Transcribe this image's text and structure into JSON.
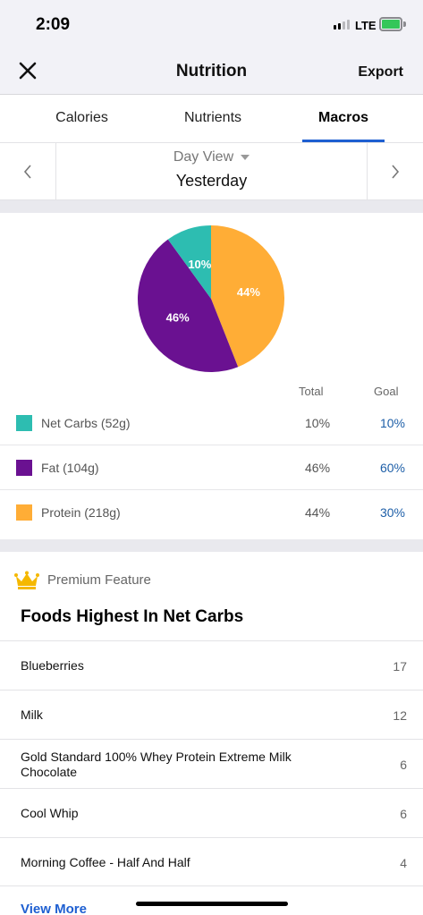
{
  "status_bar": {
    "time": "2:09",
    "network": "LTE"
  },
  "header": {
    "title": "Nutrition",
    "export_label": "Export",
    "close_icon": "close-icon"
  },
  "tabs": [
    {
      "label": "Calories",
      "active": false
    },
    {
      "label": "Nutrients",
      "active": false
    },
    {
      "label": "Macros",
      "active": true
    }
  ],
  "date_nav": {
    "mode": "Day View",
    "day": "Yesterday"
  },
  "macros": {
    "colors": {
      "net_carbs": "#2dbdb1",
      "fat": "#6a1191",
      "protein": "#ffad36"
    },
    "slices": [
      {
        "key": "protein",
        "label": "44%",
        "value": 44
      },
      {
        "key": "fat",
        "label": "46%",
        "value": 46
      },
      {
        "key": "net_carbs",
        "label": "10%",
        "value": 10
      }
    ],
    "col_total": "Total",
    "col_goal": "Goal",
    "rows": [
      {
        "label": "Net Carbs (52g)",
        "total": "10%",
        "goal": "10%",
        "color": "#2dbdb1"
      },
      {
        "label": "Fat (104g)",
        "total": "46%",
        "goal": "60%",
        "color": "#6a1191"
      },
      {
        "label": "Protein (218g)",
        "total": "44%",
        "goal": "30%",
        "color": "#ffad36"
      }
    ]
  },
  "premium": {
    "badge": "Premium Feature",
    "title": "Foods Highest In Net Carbs",
    "foods": [
      {
        "name": "Blueberries",
        "value": "17"
      },
      {
        "name": "Milk",
        "value": "12"
      },
      {
        "name": "Gold Standard 100% Whey Protein Extreme Milk Chocolate",
        "value": "6"
      },
      {
        "name": "Cool Whip",
        "value": "6"
      },
      {
        "name": "Morning Coffee - Half And Half",
        "value": "4"
      }
    ],
    "view_more": "View More"
  }
}
